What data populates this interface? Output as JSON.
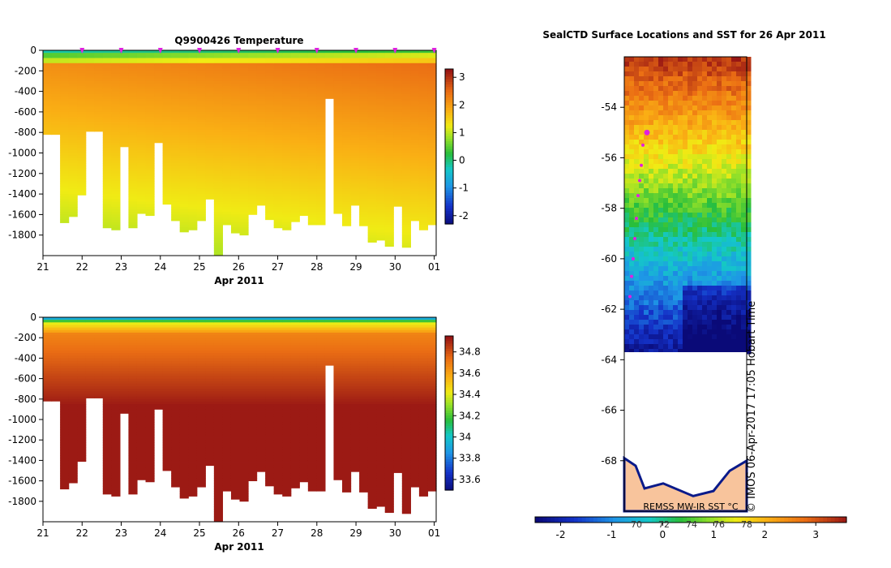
{
  "chart_data": [
    {
      "type": "heatmap",
      "id": "temperature-section",
      "title": "Q9900426  Temperature",
      "xlabel": "Apr 2011",
      "ylabel": "",
      "x_ticks": [
        "21",
        "22",
        "23",
        "24",
        "25",
        "26",
        "27",
        "28",
        "29",
        "30",
        "01"
      ],
      "xlim": [
        21,
        31.05
      ],
      "y_ticks": [
        "0",
        "-200",
        "-400",
        "-600",
        "-800",
        "-1000",
        "-1200",
        "-1400",
        "-1600",
        "-1800"
      ],
      "ylim": [
        -2000,
        0
      ],
      "colorbar": {
        "min": -2.3,
        "max": 3.3,
        "ticks": [
          "-2",
          "-1",
          "0",
          "1",
          "2",
          "3"
        ],
        "tick_values": [
          -2,
          -1,
          0,
          1,
          2,
          3
        ]
      },
      "profile_markers": [
        22,
        23,
        24,
        25,
        26,
        27,
        28,
        29,
        30,
        31
      ],
      "profile_max_depths": [
        820,
        820,
        1680,
        1620,
        1410,
        790,
        790,
        1730,
        1750,
        940,
        1730,
        1590,
        1610,
        900,
        1500,
        1660,
        1770,
        1750,
        1660,
        1450,
        2000,
        1700,
        1780,
        1800,
        1600,
        1510,
        1650,
        1730,
        1750,
        1670,
        1610,
        1700,
        1700,
        470,
        1590,
        1710,
        1510,
        1710,
        1870,
        1850,
        1910,
        1520,
        1920,
        1660,
        1750,
        1700
      ]
    },
    {
      "type": "heatmap",
      "id": "salinity-section",
      "title": "",
      "xlabel": "Apr 2011",
      "ylabel": "",
      "x_ticks": [
        "21",
        "22",
        "23",
        "24",
        "25",
        "26",
        "27",
        "28",
        "29",
        "30",
        "01"
      ],
      "xlim": [
        21,
        31.05
      ],
      "y_ticks": [
        "0",
        "-200",
        "-400",
        "-600",
        "-800",
        "-1000",
        "-1200",
        "-1400",
        "-1600",
        "-1800"
      ],
      "ylim": [
        -2000,
        0
      ],
      "colorbar": {
        "min": 33.5,
        "max": 34.95,
        "ticks": [
          "33.6",
          "33.8",
          "34",
          "34.2",
          "34.4",
          "34.6",
          "34.8"
        ],
        "tick_values": [
          33.6,
          33.8,
          34.0,
          34.2,
          34.4,
          34.6,
          34.8
        ]
      }
    },
    {
      "type": "heatmap",
      "id": "sst-map",
      "title": "SealCTD Surface Locations and SST for 26 Apr 2011",
      "y_ticks": [
        "-54",
        "-56",
        "-58",
        "-60",
        "-62",
        "-64",
        "-66",
        "-68"
      ],
      "y_tick_values": [
        -54,
        -56,
        -58,
        -60,
        -62,
        -64,
        -66,
        -68
      ],
      "ylim": [
        -70,
        -52
      ],
      "source_label": "REMSS MW-IR SST °C",
      "stamp": "© IMOS 06-Apr-2017 17:05 Hobart Time",
      "colorbar": {
        "min": -2.5,
        "max": 3.6,
        "ticks": [
          "-2",
          "-1",
          "0",
          "1",
          "2",
          "3"
        ],
        "tick_values": [
          -2,
          -1,
          0,
          1,
          2,
          3
        ],
        "inner_labels": [
          "70",
          "72",
          "74",
          "76",
          "78"
        ]
      },
      "seal_track_lat": [
        -55.0,
        -55.5,
        -56.3,
        -56.9,
        -57.5,
        -58.4,
        -59.2,
        -60.0,
        -60.7,
        -61.5
      ]
    }
  ]
}
